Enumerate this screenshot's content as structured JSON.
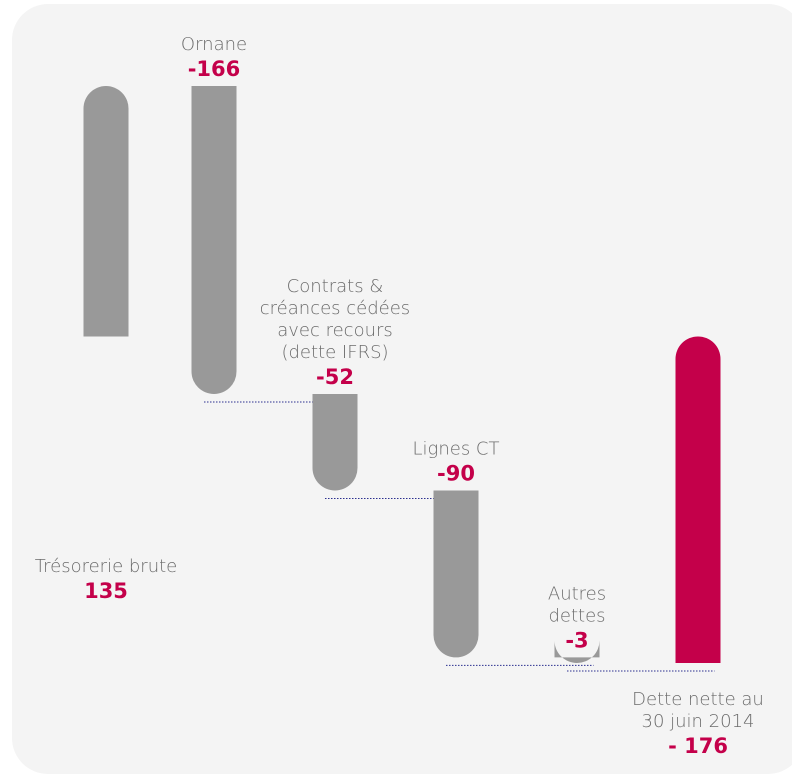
{
  "chart_data": {
    "type": "waterfall",
    "colors": {
      "bar": "#999999",
      "total": "#c4004a",
      "value": "#c4004a",
      "label": "#6b6b6b",
      "connector": "#2b2f8f",
      "background": "#f4f4f4"
    },
    "steps": [
      {
        "label_lines": [
          "Trésorerie brute"
        ],
        "display": "135",
        "value": 135,
        "kind": "start"
      },
      {
        "label_lines": [
          "Ornane"
        ],
        "display": "-166",
        "value": -166,
        "kind": "delta"
      },
      {
        "label_lines": [
          "Contrats &",
          "créances cédées",
          "avec recours",
          "(dette IFRS)"
        ],
        "display": "-52",
        "value": -52,
        "kind": "delta"
      },
      {
        "label_lines": [
          "Lignes CT"
        ],
        "display": "-90",
        "value": -90,
        "kind": "delta"
      },
      {
        "label_lines": [
          "Autres",
          "dettes"
        ],
        "display": "-3",
        "value": -3,
        "kind": "delta"
      },
      {
        "label_lines": [
          "Dette nette au",
          "30 juin 2014"
        ],
        "display": "- 176",
        "value": -176,
        "kind": "total"
      }
    ]
  }
}
